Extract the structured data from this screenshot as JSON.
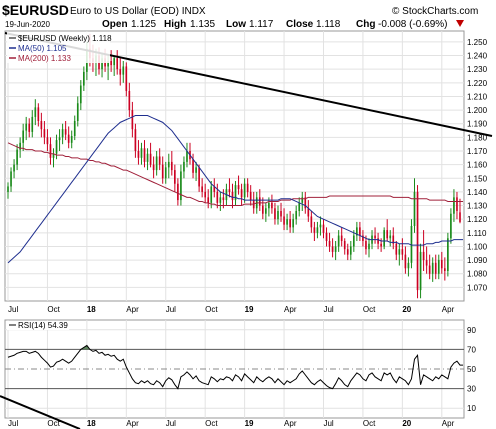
{
  "header": {
    "symbol": "$EURUSD",
    "description": "Euro to US Dollar (EOD)  INDX",
    "watermark": "© StockCharts.com",
    "date": "19-Jun-2020",
    "open_label": "Open",
    "open": "1.125",
    "high_label": "High",
    "high": "1.135",
    "low_label": "Low",
    "low": "1.117",
    "close_label": "Close",
    "close": "1.118",
    "chg_label": "Chg",
    "chg": "-0.008 (-0.69%)",
    "chg_arrow": "triangle-down-icon"
  },
  "colors": {
    "up": "#1a8a1a",
    "down": "#cc0022",
    "ma50": "#1f2f8f",
    "ma200": "#a0203a",
    "trend": "#000000",
    "rsi": "#000000",
    "rsi_fill": "#3a6a3a",
    "arrow": "#c00000"
  },
  "legend": {
    "price": "$EURUSD (Weekly) 1.118",
    "ma50": "MA(50) 1.105",
    "ma200": "MA(200) 1.133"
  },
  "rsi_panel": {
    "label": "RSI(14) 54.39",
    "ticks": [
      "90",
      "70",
      "50",
      "30",
      "10"
    ]
  },
  "x_labels": [
    {
      "text": "Jul",
      "bold": false,
      "idx": 0
    },
    {
      "text": "Oct",
      "bold": false,
      "idx": 13
    },
    {
      "text": "18",
      "bold": true,
      "idx": 26
    },
    {
      "text": "Apr",
      "bold": false,
      "idx": 39
    },
    {
      "text": "Jul",
      "bold": false,
      "idx": 52
    },
    {
      "text": "Oct",
      "bold": false,
      "idx": 65
    },
    {
      "text": "19",
      "bold": true,
      "idx": 78
    },
    {
      "text": "Apr",
      "bold": false,
      "idx": 91
    },
    {
      "text": "Jul",
      "bold": false,
      "idx": 104
    },
    {
      "text": "Oct",
      "bold": false,
      "idx": 117
    },
    {
      "text": "20",
      "bold": true,
      "idx": 130
    },
    {
      "text": "Apr",
      "bold": false,
      "idx": 143
    }
  ],
  "chart_data": {
    "type": "candlestick",
    "interval": "weekly",
    "y_ticks": [
      "1.250",
      "1.240",
      "1.230",
      "1.220",
      "1.210",
      "1.200",
      "1.190",
      "1.180",
      "1.170",
      "1.160",
      "1.150",
      "1.140",
      "1.130",
      "1.120",
      "1.110",
      "1.100",
      "1.090",
      "1.080",
      "1.070"
    ],
    "ylim": [
      1.06,
      1.258
    ],
    "ohlc": [
      [
        1.14,
        1.147,
        1.135,
        1.144
      ],
      [
        1.144,
        1.158,
        1.14,
        1.155
      ],
      [
        1.155,
        1.164,
        1.15,
        1.16
      ],
      [
        1.16,
        1.175,
        1.156,
        1.171
      ],
      [
        1.171,
        1.18,
        1.165,
        1.176
      ],
      [
        1.176,
        1.19,
        1.17,
        1.185
      ],
      [
        1.185,
        1.195,
        1.178,
        1.19
      ],
      [
        1.19,
        1.194,
        1.18,
        1.184
      ],
      [
        1.184,
        1.2,
        1.18,
        1.195
      ],
      [
        1.195,
        1.208,
        1.189,
        1.202
      ],
      [
        1.202,
        1.205,
        1.188,
        1.192
      ],
      [
        1.192,
        1.198,
        1.18,
        1.186
      ],
      [
        1.186,
        1.192,
        1.175,
        1.18
      ],
      [
        1.18,
        1.186,
        1.17,
        1.175
      ],
      [
        1.175,
        1.18,
        1.16,
        1.165
      ],
      [
        1.165,
        1.172,
        1.158,
        1.168
      ],
      [
        1.168,
        1.182,
        1.164,
        1.178
      ],
      [
        1.178,
        1.186,
        1.17,
        1.18
      ],
      [
        1.18,
        1.19,
        1.175,
        1.186
      ],
      [
        1.186,
        1.192,
        1.178,
        1.182
      ],
      [
        1.182,
        1.188,
        1.172,
        1.176
      ],
      [
        1.176,
        1.185,
        1.172,
        1.181
      ],
      [
        1.181,
        1.196,
        1.178,
        1.192
      ],
      [
        1.192,
        1.21,
        1.188,
        1.205
      ],
      [
        1.205,
        1.222,
        1.2,
        1.218
      ],
      [
        1.218,
        1.232,
        1.214,
        1.228
      ],
      [
        1.228,
        1.25,
        1.222,
        1.245
      ],
      [
        1.245,
        1.256,
        1.232,
        1.238
      ],
      [
        1.238,
        1.248,
        1.228,
        1.235
      ],
      [
        1.235,
        1.245,
        1.225,
        1.24
      ],
      [
        1.24,
        1.246,
        1.226,
        1.23
      ],
      [
        1.23,
        1.242,
        1.224,
        1.238
      ],
      [
        1.238,
        1.245,
        1.228,
        1.232
      ],
      [
        1.232,
        1.24,
        1.222,
        1.236
      ],
      [
        1.236,
        1.244,
        1.228,
        1.233
      ],
      [
        1.233,
        1.24,
        1.225,
        1.238
      ],
      [
        1.238,
        1.244,
        1.226,
        1.23
      ],
      [
        1.23,
        1.238,
        1.218,
        1.226
      ],
      [
        1.226,
        1.236,
        1.22,
        1.232
      ],
      [
        1.232,
        1.235,
        1.21,
        1.214
      ],
      [
        1.214,
        1.22,
        1.195,
        1.2
      ],
      [
        1.2,
        1.206,
        1.18,
        1.186
      ],
      [
        1.186,
        1.19,
        1.165,
        1.17
      ],
      [
        1.17,
        1.178,
        1.16,
        1.165
      ],
      [
        1.165,
        1.176,
        1.16,
        1.172
      ],
      [
        1.172,
        1.178,
        1.158,
        1.162
      ],
      [
        1.162,
        1.172,
        1.156,
        1.168
      ],
      [
        1.168,
        1.176,
        1.158,
        1.16
      ],
      [
        1.16,
        1.166,
        1.15,
        1.156
      ],
      [
        1.156,
        1.17,
        1.152,
        1.166
      ],
      [
        1.166,
        1.172,
        1.156,
        1.16
      ],
      [
        1.16,
        1.166,
        1.146,
        1.15
      ],
      [
        1.15,
        1.162,
        1.146,
        1.158
      ],
      [
        1.158,
        1.168,
        1.15,
        1.162
      ],
      [
        1.162,
        1.17,
        1.152,
        1.156
      ],
      [
        1.156,
        1.16,
        1.14,
        1.146
      ],
      [
        1.146,
        1.15,
        1.13,
        1.134
      ],
      [
        1.134,
        1.16,
        1.13,
        1.155
      ],
      [
        1.155,
        1.166,
        1.15,
        1.162
      ],
      [
        1.162,
        1.176,
        1.158,
        1.17
      ],
      [
        1.17,
        1.176,
        1.16,
        1.164
      ],
      [
        1.164,
        1.168,
        1.15,
        1.154
      ],
      [
        1.154,
        1.162,
        1.148,
        1.158
      ],
      [
        1.158,
        1.16,
        1.14,
        1.144
      ],
      [
        1.144,
        1.15,
        1.136,
        1.14
      ],
      [
        1.14,
        1.146,
        1.132,
        1.136
      ],
      [
        1.136,
        1.142,
        1.128,
        1.132
      ],
      [
        1.132,
        1.148,
        1.128,
        1.144
      ],
      [
        1.144,
        1.15,
        1.136,
        1.14
      ],
      [
        1.14,
        1.146,
        1.128,
        1.132
      ],
      [
        1.132,
        1.14,
        1.126,
        1.136
      ],
      [
        1.136,
        1.142,
        1.128,
        1.134
      ],
      [
        1.134,
        1.146,
        1.13,
        1.142
      ],
      [
        1.142,
        1.15,
        1.136,
        1.14
      ],
      [
        1.14,
        1.146,
        1.128,
        1.134
      ],
      [
        1.134,
        1.148,
        1.13,
        1.145
      ],
      [
        1.145,
        1.152,
        1.138,
        1.142
      ],
      [
        1.142,
        1.146,
        1.13,
        1.136
      ],
      [
        1.136,
        1.15,
        1.132,
        1.146
      ],
      [
        1.146,
        1.15,
        1.136,
        1.14
      ],
      [
        1.14,
        1.145,
        1.13,
        1.134
      ],
      [
        1.134,
        1.14,
        1.124,
        1.128
      ],
      [
        1.128,
        1.14,
        1.124,
        1.136
      ],
      [
        1.136,
        1.142,
        1.126,
        1.13
      ],
      [
        1.13,
        1.136,
        1.12,
        1.124
      ],
      [
        1.124,
        1.132,
        1.118,
        1.128
      ],
      [
        1.128,
        1.136,
        1.122,
        1.132
      ],
      [
        1.132,
        1.138,
        1.124,
        1.128
      ],
      [
        1.128,
        1.132,
        1.116,
        1.12
      ],
      [
        1.12,
        1.13,
        1.116,
        1.126
      ],
      [
        1.126,
        1.132,
        1.118,
        1.122
      ],
      [
        1.122,
        1.128,
        1.112,
        1.116
      ],
      [
        1.116,
        1.124,
        1.112,
        1.12
      ],
      [
        1.12,
        1.126,
        1.11,
        1.114
      ],
      [
        1.114,
        1.124,
        1.11,
        1.12
      ],
      [
        1.12,
        1.13,
        1.116,
        1.126
      ],
      [
        1.126,
        1.136,
        1.122,
        1.132
      ],
      [
        1.132,
        1.14,
        1.126,
        1.136
      ],
      [
        1.136,
        1.14,
        1.124,
        1.128
      ],
      [
        1.128,
        1.134,
        1.118,
        1.122
      ],
      [
        1.122,
        1.126,
        1.11,
        1.114
      ],
      [
        1.114,
        1.118,
        1.104,
        1.11
      ],
      [
        1.11,
        1.118,
        1.106,
        1.114
      ],
      [
        1.114,
        1.122,
        1.108,
        1.116
      ],
      [
        1.116,
        1.12,
        1.106,
        1.11
      ],
      [
        1.11,
        1.114,
        1.1,
        1.104
      ],
      [
        1.104,
        1.11,
        1.096,
        1.1
      ],
      [
        1.1,
        1.106,
        1.092,
        1.096
      ],
      [
        1.096,
        1.104,
        1.09,
        1.1
      ],
      [
        1.1,
        1.112,
        1.096,
        1.108
      ],
      [
        1.108,
        1.114,
        1.1,
        1.104
      ],
      [
        1.104,
        1.106,
        1.094,
        1.098
      ],
      [
        1.098,
        1.102,
        1.09,
        1.094
      ],
      [
        1.094,
        1.104,
        1.09,
        1.1
      ],
      [
        1.1,
        1.112,
        1.096,
        1.108
      ],
      [
        1.108,
        1.118,
        1.104,
        1.114
      ],
      [
        1.114,
        1.118,
        1.104,
        1.108
      ],
      [
        1.108,
        1.112,
        1.1,
        1.104
      ],
      [
        1.104,
        1.108,
        1.094,
        1.098
      ],
      [
        1.098,
        1.106,
        1.092,
        1.102
      ],
      [
        1.102,
        1.112,
        1.098,
        1.108
      ],
      [
        1.108,
        1.114,
        1.102,
        1.106
      ],
      [
        1.106,
        1.11,
        1.098,
        1.102
      ],
      [
        1.102,
        1.106,
        1.096,
        1.1
      ],
      [
        1.1,
        1.114,
        1.098,
        1.112
      ],
      [
        1.112,
        1.12,
        1.104,
        1.106
      ],
      [
        1.106,
        1.112,
        1.1,
        1.108
      ],
      [
        1.108,
        1.114,
        1.098,
        1.102
      ],
      [
        1.102,
        1.104,
        1.09,
        1.094
      ],
      [
        1.094,
        1.102,
        1.086,
        1.098
      ],
      [
        1.098,
        1.106,
        1.09,
        1.094
      ],
      [
        1.094,
        1.1,
        1.08,
        1.084
      ],
      [
        1.084,
        1.092,
        1.078,
        1.088
      ],
      [
        1.088,
        1.12,
        1.084,
        1.115
      ],
      [
        1.115,
        1.15,
        1.11,
        1.14
      ],
      [
        1.14,
        1.145,
        1.062,
        1.068
      ],
      [
        1.068,
        1.102,
        1.062,
        1.096
      ],
      [
        1.096,
        1.112,
        1.082,
        1.09
      ],
      [
        1.09,
        1.1,
        1.08,
        1.086
      ],
      [
        1.086,
        1.094,
        1.076,
        1.08
      ],
      [
        1.08,
        1.092,
        1.074,
        1.088
      ],
      [
        1.088,
        1.094,
        1.076,
        1.08
      ],
      [
        1.08,
        1.094,
        1.076,
        1.09
      ],
      [
        1.09,
        1.096,
        1.08,
        1.084
      ],
      [
        1.084,
        1.092,
        1.075,
        1.082
      ],
      [
        1.082,
        1.11,
        1.078,
        1.106
      ],
      [
        1.106,
        1.128,
        1.102,
        1.124
      ],
      [
        1.124,
        1.142,
        1.118,
        1.136
      ],
      [
        1.136,
        1.14,
        1.12,
        1.126
      ],
      [
        1.125,
        1.135,
        1.117,
        1.118
      ]
    ],
    "ma50": [
      1.088,
      1.09,
      1.092,
      1.094,
      1.096,
      1.099,
      1.102,
      1.105,
      1.108,
      1.111,
      1.114,
      1.117,
      1.12,
      1.123,
      1.126,
      1.129,
      1.132,
      1.135,
      1.138,
      1.141,
      1.144,
      1.147,
      1.15,
      1.153,
      1.156,
      1.159,
      1.162,
      1.165,
      1.168,
      1.171,
      1.174,
      1.177,
      1.18,
      1.183,
      1.185,
      1.187,
      1.189,
      1.191,
      1.192,
      1.193,
      1.194,
      1.195,
      1.196,
      1.196,
      1.196,
      1.196,
      1.196,
      1.195,
      1.194,
      1.193,
      1.192,
      1.191,
      1.189,
      1.187,
      1.185,
      1.182,
      1.179,
      1.176,
      1.173,
      1.17,
      1.167,
      1.164,
      1.161,
      1.158,
      1.155,
      1.152,
      1.149,
      1.146,
      1.144,
      1.142,
      1.14,
      1.139,
      1.138,
      1.137,
      1.136,
      1.136,
      1.135,
      1.135,
      1.134,
      1.134,
      1.134,
      1.134,
      1.134,
      1.134,
      1.134,
      1.134,
      1.134,
      1.134,
      1.134,
      1.134,
      1.135,
      1.135,
      1.135,
      1.135,
      1.134,
      1.133,
      1.132,
      1.131,
      1.13,
      1.128,
      1.126,
      1.124,
      1.122,
      1.121,
      1.12,
      1.119,
      1.118,
      1.117,
      1.116,
      1.115,
      1.114,
      1.113,
      1.112,
      1.111,
      1.11,
      1.109,
      1.108,
      1.107,
      1.106,
      1.105,
      1.105,
      1.105,
      1.105,
      1.104,
      1.104,
      1.104,
      1.103,
      1.103,
      1.103,
      1.102,
      1.102,
      1.102,
      1.102,
      1.101,
      1.101,
      1.101,
      1.101,
      1.101,
      1.102,
      1.102,
      1.102,
      1.103,
      1.103,
      1.104,
      1.104,
      1.104,
      1.104,
      1.105,
      1.105,
      1.105,
      1.105
    ],
    "ma200": [
      1.176,
      1.175,
      1.174,
      1.173,
      1.172,
      1.172,
      1.171,
      1.171,
      1.171,
      1.17,
      1.17,
      1.17,
      1.169,
      1.169,
      1.168,
      1.168,
      1.167,
      1.167,
      1.167,
      1.166,
      1.166,
      1.165,
      1.165,
      1.165,
      1.164,
      1.164,
      1.164,
      1.163,
      1.163,
      1.162,
      1.162,
      1.161,
      1.161,
      1.16,
      1.159,
      1.159,
      1.158,
      1.157,
      1.156,
      1.156,
      1.155,
      1.154,
      1.153,
      1.152,
      1.151,
      1.15,
      1.149,
      1.148,
      1.147,
      1.146,
      1.145,
      1.144,
      1.143,
      1.142,
      1.141,
      1.14,
      1.139,
      1.138,
      1.137,
      1.136,
      1.136,
      1.135,
      1.134,
      1.133,
      1.133,
      1.132,
      1.132,
      1.131,
      1.131,
      1.13,
      1.13,
      1.13,
      1.13,
      1.13,
      1.13,
      1.13,
      1.13,
      1.13,
      1.131,
      1.131,
      1.131,
      1.131,
      1.132,
      1.132,
      1.132,
      1.132,
      1.133,
      1.133,
      1.133,
      1.133,
      1.134,
      1.134,
      1.134,
      1.134,
      1.135,
      1.135,
      1.135,
      1.135,
      1.135,
      1.136,
      1.136,
      1.136,
      1.136,
      1.136,
      1.136,
      1.136,
      1.137,
      1.137,
      1.137,
      1.137,
      1.137,
      1.137,
      1.137,
      1.137,
      1.137,
      1.137,
      1.137,
      1.137,
      1.137,
      1.137,
      1.137,
      1.137,
      1.137,
      1.137,
      1.137,
      1.137,
      1.137,
      1.136,
      1.136,
      1.136,
      1.136,
      1.136,
      1.136,
      1.135,
      1.135,
      1.135,
      1.135,
      1.135,
      1.135,
      1.134,
      1.134,
      1.134,
      1.134,
      1.134,
      1.134,
      1.133,
      1.133,
      1.133,
      1.133,
      1.133,
      1.133
    ],
    "rsi": [
      62,
      63,
      64,
      66,
      67,
      68,
      68,
      66,
      67,
      68,
      66,
      62,
      59,
      56,
      52,
      53,
      57,
      58,
      60,
      58,
      56,
      58,
      62,
      66,
      70,
      72,
      74,
      70,
      68,
      69,
      66,
      67,
      64,
      65,
      63,
      64,
      60,
      58,
      60,
      52,
      46,
      40,
      36,
      35,
      38,
      36,
      38,
      35,
      34,
      38,
      36,
      32,
      38,
      41,
      39,
      34,
      30,
      42,
      44,
      47,
      44,
      40,
      43,
      38,
      36,
      35,
      34,
      42,
      40,
      37,
      40,
      39,
      42,
      41,
      38,
      44,
      42,
      38,
      45,
      42,
      39,
      36,
      42,
      39,
      37,
      40,
      42,
      40,
      36,
      40,
      37,
      34,
      38,
      36,
      38,
      40,
      45,
      48,
      44,
      40,
      36,
      34,
      37,
      39,
      36,
      33,
      31,
      30,
      35,
      41,
      38,
      34,
      32,
      38,
      42,
      46,
      44,
      40,
      38,
      44,
      46,
      42,
      40,
      38,
      46,
      44,
      46,
      40,
      36,
      42,
      40,
      38,
      34,
      40,
      60,
      64,
      34,
      44,
      42,
      40,
      38,
      42,
      40,
      44,
      42,
      40,
      52,
      56,
      58,
      54,
      54
    ]
  }
}
